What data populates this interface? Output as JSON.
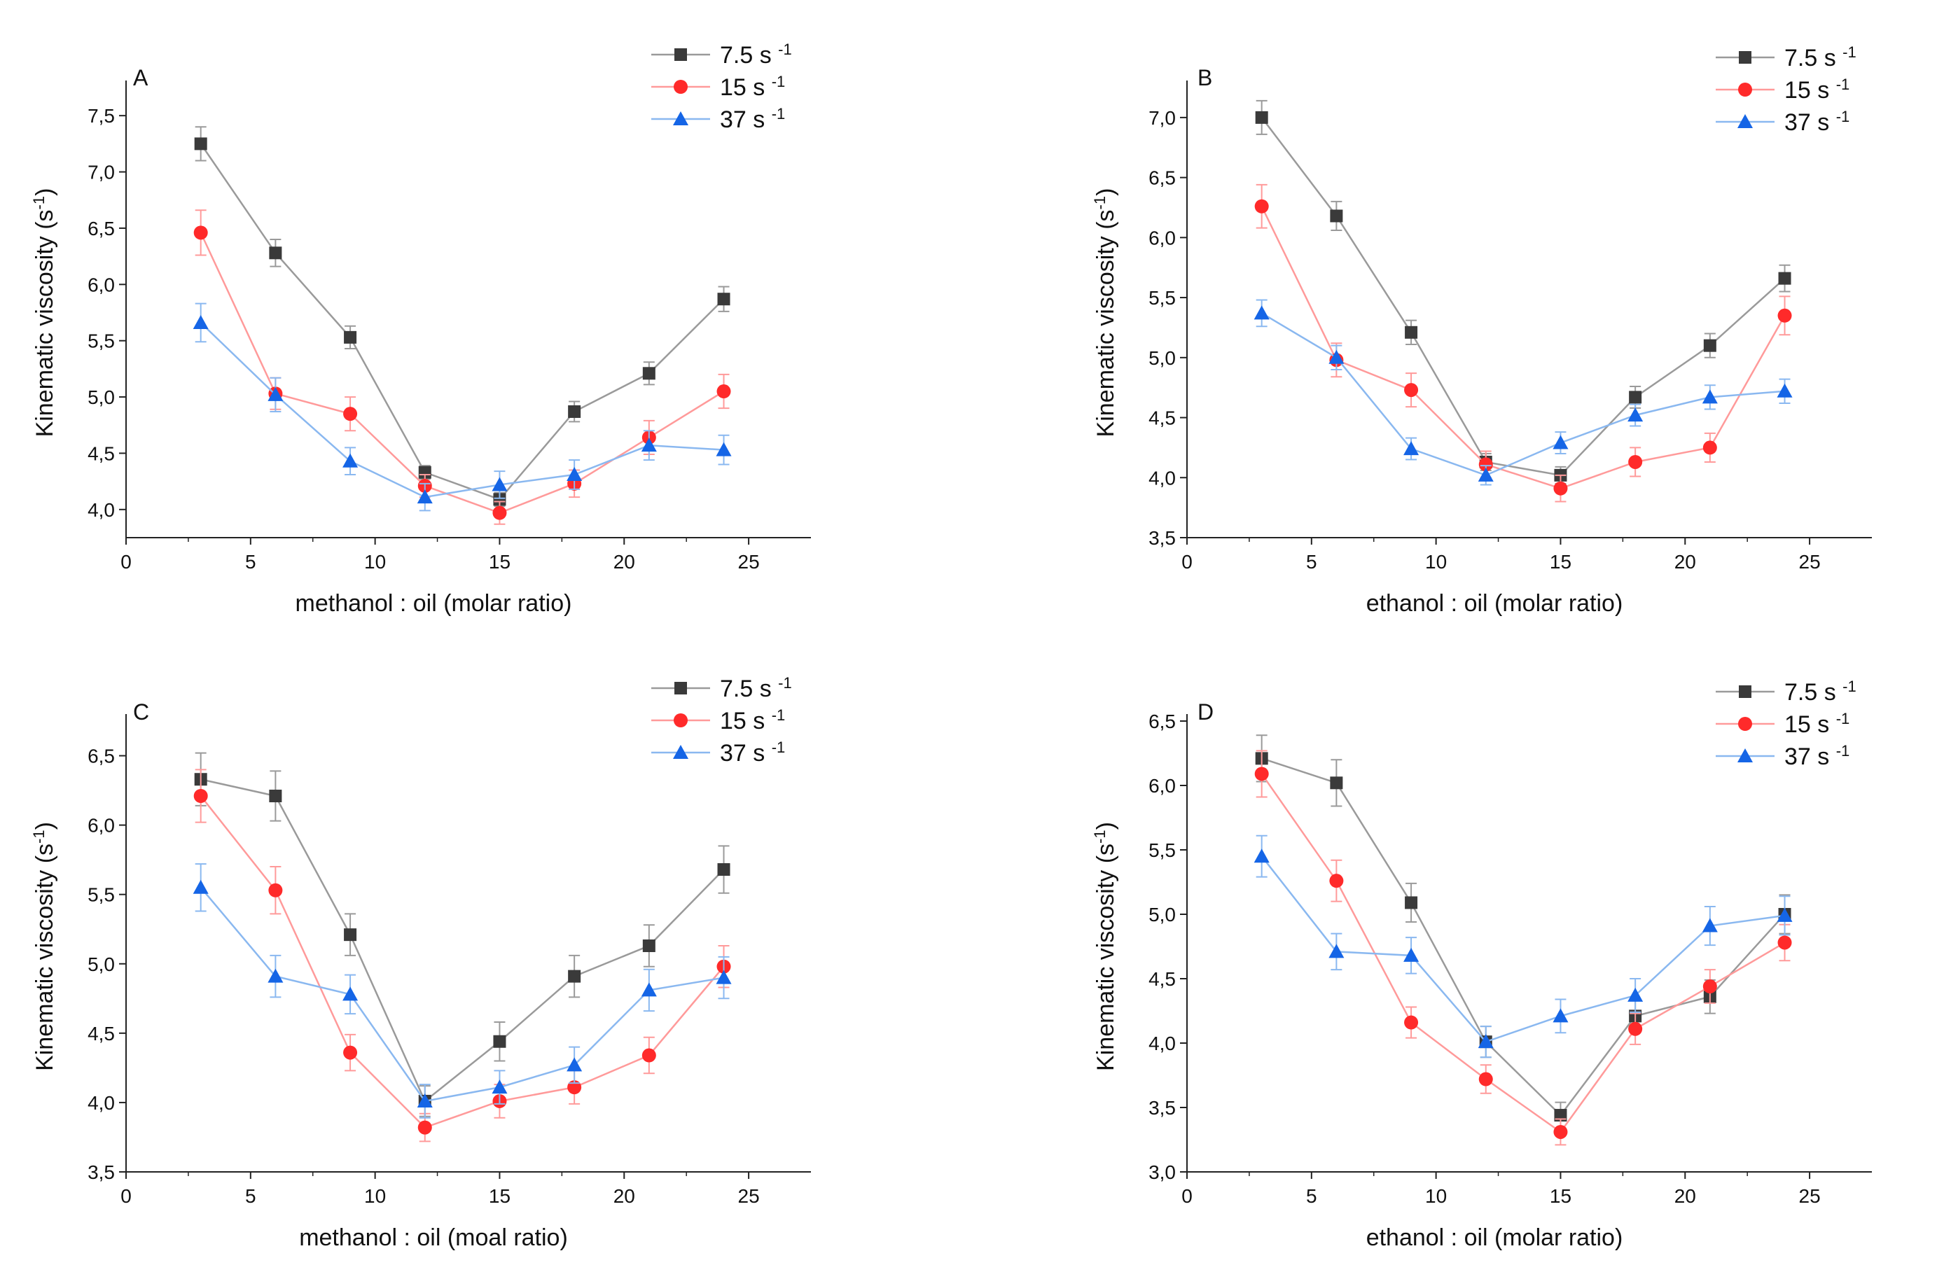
{
  "colors": {
    "axis": "#222222",
    "series": [
      "#3a3a3a",
      "#ff2a2a",
      "#1565e6"
    ],
    "lines": [
      "#9a9a9a",
      "#ff9a9a",
      "#8ab8f0"
    ],
    "errorbars": [
      "#9a9a9a",
      "#ff9a9a",
      "#8ab8f0"
    ]
  },
  "legend": {
    "entries": [
      {
        "label": "7.5 s",
        "sup": "-1",
        "marker": "square"
      },
      {
        "label": "15 s",
        "sup": "-1",
        "marker": "circle"
      },
      {
        "label": "37 s",
        "sup": "-1",
        "marker": "triangle"
      }
    ]
  },
  "chart_data": [
    {
      "type": "line",
      "panel": "A",
      "xlabel": "methanol : oil (molar ratio)",
      "ylabel": "Kinematic viscosity (s",
      "ylabel_sup": "-1",
      "ylabel_end": ")",
      "xlim": [
        0,
        27.5
      ],
      "ylim": [
        3.75,
        7.75
      ],
      "xticks": [
        0,
        5,
        10,
        15,
        20,
        25
      ],
      "yticks": [
        4.0,
        4.5,
        5.0,
        5.5,
        6.0,
        6.5,
        7.0,
        7.5
      ],
      "ytick_labels": [
        "4,0",
        "4,5",
        "5,0",
        "5,5",
        "6,0",
        "6,5",
        "7,0",
        "7,5"
      ],
      "x": [
        3,
        6,
        9,
        12,
        15,
        18,
        21,
        24
      ],
      "series": [
        {
          "name": "7.5 s-1",
          "values": [
            7.25,
            6.28,
            5.53,
            4.33,
            4.09,
            4.87,
            5.21,
            5.87
          ],
          "errors": [
            0.15,
            0.12,
            0.1,
            0.06,
            0.06,
            0.09,
            0.1,
            0.11
          ]
        },
        {
          "name": "15 s-1",
          "values": [
            6.46,
            5.03,
            4.85,
            4.21,
            3.97,
            4.23,
            4.64,
            5.05
          ],
          "errors": [
            0.2,
            0.14,
            0.15,
            0.1,
            0.1,
            0.12,
            0.15,
            0.15
          ]
        },
        {
          "name": "37 s-1",
          "values": [
            5.66,
            5.02,
            4.43,
            4.11,
            4.22,
            4.31,
            4.57,
            4.53
          ],
          "errors": [
            0.17,
            0.15,
            0.12,
            0.12,
            0.12,
            0.13,
            0.13,
            0.13
          ]
        }
      ]
    },
    {
      "type": "line",
      "panel": "B",
      "xlabel": "ethanol : oil (molar ratio)",
      "ylabel": "Kinematic viscosity (s",
      "ylabel_sup": "-1",
      "ylabel_end": ")",
      "xlim": [
        0,
        27.5
      ],
      "ylim": [
        3.5,
        7.25
      ],
      "xticks": [
        0,
        5,
        10,
        15,
        20,
        25
      ],
      "yticks": [
        3.5,
        4.0,
        4.5,
        5.0,
        5.5,
        6.0,
        6.5,
        7.0
      ],
      "ytick_labels": [
        "3,5",
        "4,0",
        "4,5",
        "5,0",
        "5,5",
        "6,0",
        "6,5",
        "7,0"
      ],
      "x": [
        3,
        6,
        9,
        12,
        15,
        18,
        21,
        24
      ],
      "series": [
        {
          "name": "7.5 s-1",
          "values": [
            7.0,
            6.18,
            5.21,
            4.13,
            4.02,
            4.67,
            5.1,
            5.66
          ],
          "errors": [
            0.14,
            0.12,
            0.1,
            0.07,
            0.07,
            0.09,
            0.1,
            0.11
          ]
        },
        {
          "name": "15 s-1",
          "values": [
            6.26,
            4.98,
            4.73,
            4.11,
            3.91,
            4.13,
            4.25,
            5.35
          ],
          "errors": [
            0.18,
            0.14,
            0.14,
            0.11,
            0.11,
            0.12,
            0.12,
            0.16
          ]
        },
        {
          "name": "37 s-1",
          "values": [
            5.37,
            5.0,
            4.24,
            4.02,
            4.29,
            4.52,
            4.67,
            4.72
          ],
          "errors": [
            0.11,
            0.1,
            0.09,
            0.08,
            0.09,
            0.09,
            0.1,
            0.1
          ]
        }
      ]
    },
    {
      "type": "line",
      "panel": "C",
      "xlabel": "methanol : oil (moal ratio)",
      "ylabel": "Kinematic viscosity (s",
      "ylabel_sup": "-1",
      "ylabel_end": ")",
      "xlim": [
        0,
        27.5
      ],
      "ylim": [
        3.5,
        6.75
      ],
      "xticks": [
        0,
        5,
        10,
        15,
        20,
        25
      ],
      "yticks": [
        3.5,
        4.0,
        4.5,
        5.0,
        5.5,
        6.0,
        6.5
      ],
      "ytick_labels": [
        "3,5",
        "4,0",
        "4,5",
        "5,0",
        "5,5",
        "6,0",
        "6,5"
      ],
      "x": [
        3,
        6,
        9,
        12,
        15,
        18,
        21,
        24
      ],
      "series": [
        {
          "name": "7.5 s-1",
          "values": [
            6.33,
            6.21,
            5.21,
            4.01,
            4.44,
            4.91,
            5.13,
            5.68
          ],
          "errors": [
            0.19,
            0.18,
            0.15,
            0.11,
            0.14,
            0.15,
            0.15,
            0.17
          ]
        },
        {
          "name": "15 s-1",
          "values": [
            6.21,
            5.53,
            4.36,
            3.82,
            4.01,
            4.11,
            4.34,
            4.98
          ],
          "errors": [
            0.19,
            0.17,
            0.13,
            0.1,
            0.12,
            0.12,
            0.13,
            0.15
          ]
        },
        {
          "name": "37 s-1",
          "values": [
            5.55,
            4.91,
            4.78,
            4.01,
            4.11,
            4.27,
            4.81,
            4.9
          ],
          "errors": [
            0.17,
            0.15,
            0.14,
            0.12,
            0.12,
            0.13,
            0.15,
            0.15
          ]
        }
      ]
    },
    {
      "type": "line",
      "panel": "D",
      "xlabel": "ethanol : oil (molar ratio)",
      "ylabel": "Kinematic viscosity (s",
      "ylabel_sup": "-1",
      "ylabel_end": ")",
      "xlim": [
        0,
        27.5
      ],
      "ylim": [
        3.0,
        6.5
      ],
      "xticks": [
        0,
        5,
        10,
        15,
        20,
        25
      ],
      "yticks": [
        3.0,
        3.5,
        4.0,
        4.5,
        5.0,
        5.5,
        6.0,
        6.5
      ],
      "ytick_labels": [
        "3,0",
        "3,5",
        "4,0",
        "4,5",
        "5,0",
        "5,5",
        "6,0",
        "6,5"
      ],
      "x": [
        3,
        6,
        9,
        12,
        15,
        18,
        21,
        24
      ],
      "series": [
        {
          "name": "7.5 s-1",
          "values": [
            6.21,
            6.02,
            5.09,
            4.01,
            3.44,
            4.21,
            4.36,
            5.0
          ],
          "errors": [
            0.18,
            0.18,
            0.15,
            0.12,
            0.1,
            0.12,
            0.13,
            0.15
          ]
        },
        {
          "name": "15 s-1",
          "values": [
            6.09,
            5.26,
            4.16,
            3.72,
            3.31,
            4.11,
            4.44,
            4.78
          ],
          "errors": [
            0.18,
            0.16,
            0.12,
            0.11,
            0.1,
            0.12,
            0.13,
            0.14
          ]
        },
        {
          "name": "37 s-1",
          "values": [
            5.45,
            4.71,
            4.68,
            4.01,
            4.21,
            4.37,
            4.91,
            4.99
          ],
          "errors": [
            0.16,
            0.14,
            0.14,
            0.12,
            0.13,
            0.13,
            0.15,
            0.15
          ]
        }
      ]
    }
  ]
}
